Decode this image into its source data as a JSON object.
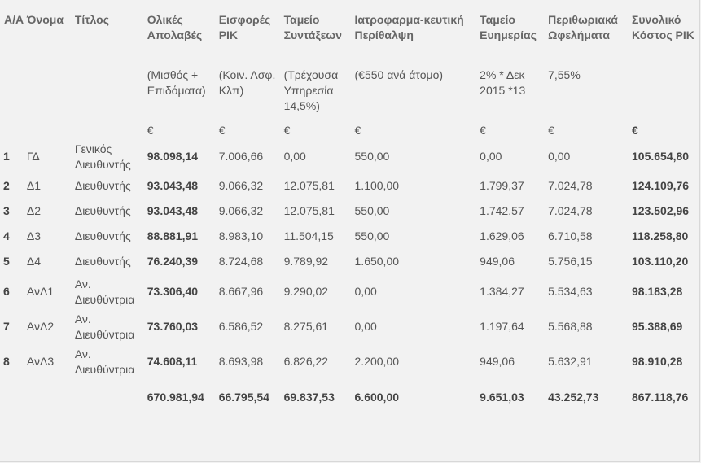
{
  "headers": [
    "Α/Α",
    "Όνομα",
    "Τίτλος",
    "Ολικές Απολαβές",
    "Εισφορές ΡΙΚ",
    "Ταμείο Συντάξεων",
    "Ιατροφαρμα-κευτική Περίθαλψη",
    "Ταμείο Ευημερίας",
    "Περιθωριακά Ωφελήματα",
    "Συνολικό Κόστος ΡΙΚ"
  ],
  "subheaders": [
    "",
    "",
    "",
    "(Μισθός + Επιδόματα)",
    "(Κοιν. Ασφ. Κλπ)",
    "(Τρέχουσα Υπηρεσία 14,5%)",
    "(€550 ανά άτομο)",
    "2% * Δεκ 2015 *13",
    "7,55%",
    ""
  ],
  "currency": [
    "",
    "",
    "",
    "€",
    "€",
    "€",
    "€",
    "€",
    "€",
    "€"
  ],
  "rows": [
    [
      "1",
      "ΓΔ",
      "Γενικός Διευθυντής",
      "98.098,14",
      "7.006,66",
      "0,00",
      "550,00",
      "0,00",
      "0,00",
      "105.654,80"
    ],
    [
      "2",
      "Δ1",
      "Διευθυντής",
      "93.043,48",
      "9.066,32",
      "12.075,81",
      "1.100,00",
      "1.799,37",
      "7.024,78",
      "124.109,76"
    ],
    [
      "3",
      "Δ2",
      "Διευθυντής",
      "93.043,48",
      "9.066,32",
      "12.075,81",
      "550,00",
      "1.742,57",
      "7.024,78",
      "123.502,96"
    ],
    [
      "4",
      "Δ3",
      "Διευθυντής",
      "88.881,91",
      "8.983,10",
      "11.504,15",
      "550,00",
      "1.629,06",
      "6.710,58",
      "118.258,80"
    ],
    [
      "5",
      "Δ4",
      "Διευθυντής",
      "76.240,39",
      "8.724,68",
      "9.789,92",
      "1.650,00",
      "949,06",
      "5.756,15",
      "103.110,20"
    ],
    [
      "6",
      "ΑνΔ1",
      "Αν. Διευθύντρια",
      "73.306,40",
      "8.667,96",
      "9.290,02",
      "0,00",
      "1.384,27",
      "5.534,63",
      "98.183,28"
    ],
    [
      "7",
      "ΑνΔ2",
      "Αν. Διευθύντρια",
      "73.760,03",
      "6.586,52",
      "8.275,61",
      "0,00",
      "1.197,64",
      "5.568,88",
      "95.388,69"
    ],
    [
      "8",
      "ΑνΔ3",
      "Αν. Διευθύντρια",
      "74.608,11",
      "8.693,98",
      "6.826,22",
      "2.200,00",
      "949,06",
      "5.632,91",
      "98.910,28"
    ]
  ],
  "totals": [
    "",
    "",
    "",
    "670.981,94",
    "66.795,54",
    "69.837,53",
    "6.600,00",
    "9.651,03",
    "43.252,73",
    "867.118,76"
  ]
}
